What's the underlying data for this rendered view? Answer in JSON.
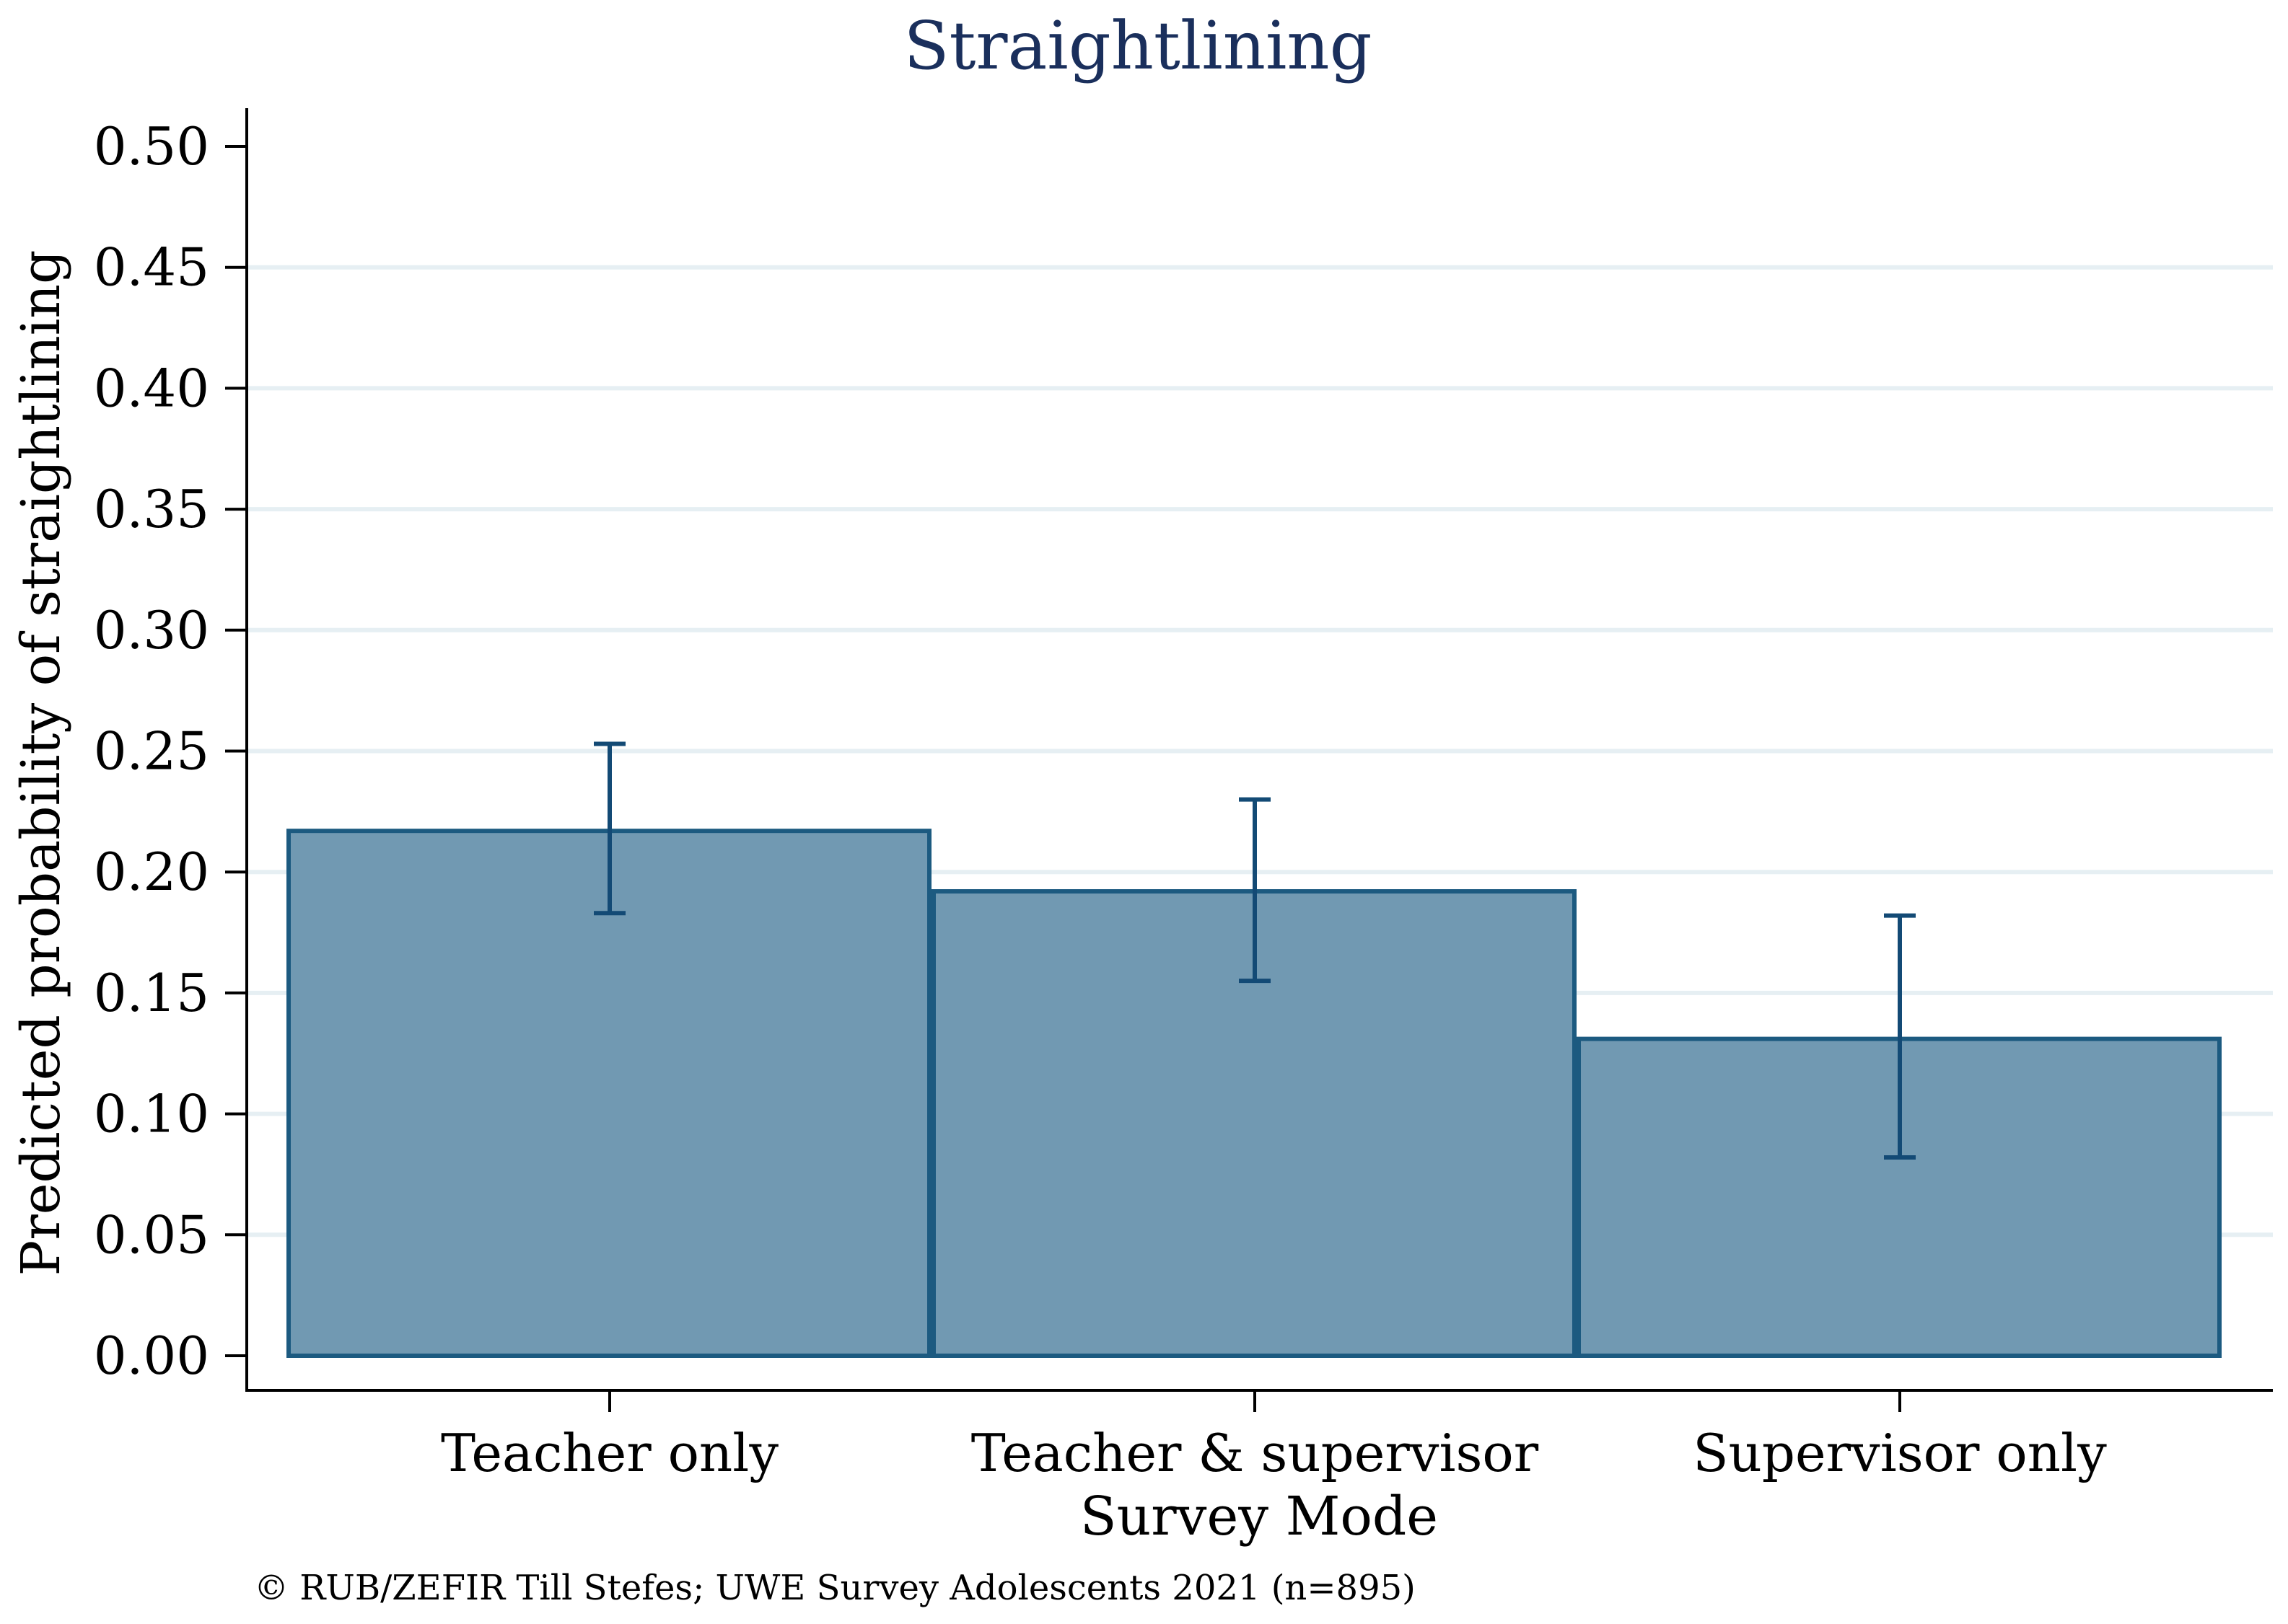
{
  "chart_data": {
    "type": "bar",
    "title": "Straightlining",
    "ylabel": "Predicted probability of straightlining",
    "xlabel": "Survey Mode",
    "categories": [
      "Teacher only",
      "Teacher & supervisor",
      "Supervisor only"
    ],
    "values": [
      0.217,
      0.192,
      0.131
    ],
    "ci_low": [
      0.183,
      0.155,
      0.082
    ],
    "ci_high": [
      0.253,
      0.23,
      0.182
    ],
    "ylim": [
      0,
      0.5
    ],
    "yticks": [
      "0.00",
      "0.05",
      "0.10",
      "0.15",
      "0.20",
      "0.25",
      "0.30",
      "0.35",
      "0.40",
      "0.45",
      "0.50"
    ],
    "grid": true,
    "note": "© RUB/ZEFIR Till Stefes; UWE Survey Adolescents 2021 (n=895)",
    "colors": {
      "bar_fill": "#7199b2",
      "bar_stroke": "#1c5a80",
      "errorbar": "#134a75",
      "grid": "#e6eff3",
      "title": "#1a2f5c"
    }
  }
}
